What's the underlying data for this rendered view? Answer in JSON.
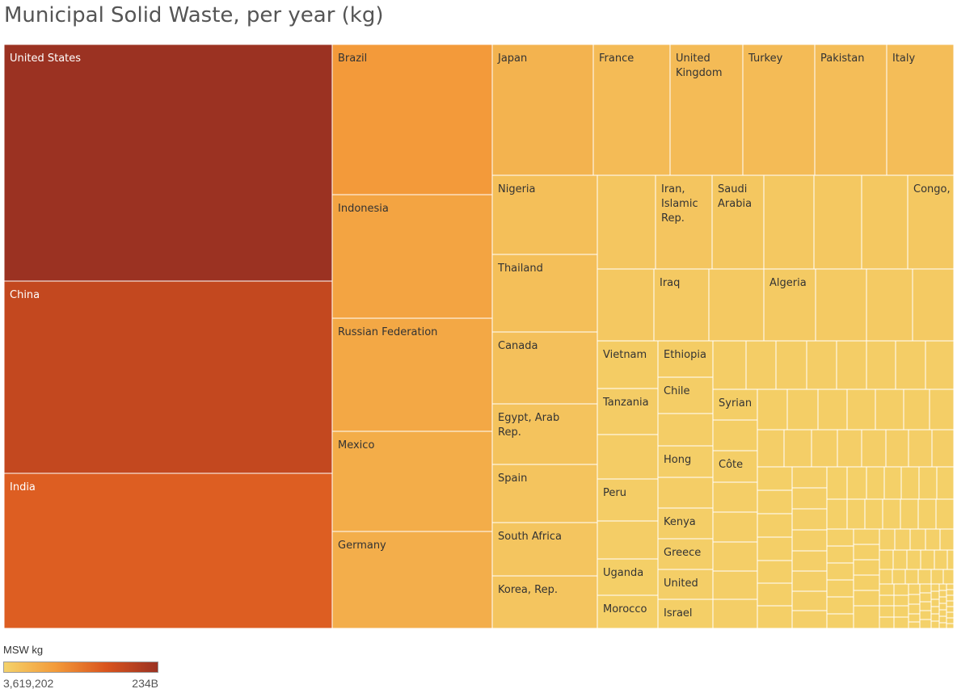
{
  "chart_data": {
    "type": "treemap",
    "title": "Municipal Solid Waste, per year (kg)",
    "color_legend": {
      "title": "MSW kg",
      "min_label": "3,619,202",
      "max_label": "234B",
      "gradient": [
        "#f4d26a",
        "#f39b3a",
        "#d9541e",
        "#9b3222"
      ]
    },
    "unit": "kg",
    "value_range": [
      3619202,
      234000000000
    ],
    "items": [
      {
        "label": "United States",
        "value": 234000000000
      },
      {
        "label": "China",
        "value": 184000000000
      },
      {
        "label": "India",
        "value": 145000000000
      },
      {
        "label": "Brazil",
        "value": 79000000000
      },
      {
        "label": "Indonesia",
        "value": 65000000000
      },
      {
        "label": "Russian Federation",
        "value": 60000000000
      },
      {
        "label": "Mexico",
        "value": 53000000000
      },
      {
        "label": "Germany",
        "value": 51000000000
      },
      {
        "label": "Japan",
        "value": 44000000000
      },
      {
        "label": "France",
        "value": 33000000000
      },
      {
        "label": "United Kingdom",
        "value": 32000000000
      },
      {
        "label": "Turkey",
        "value": 32000000000
      },
      {
        "label": "Pakistan",
        "value": 30000000000
      },
      {
        "label": "Italy",
        "value": 30000000000
      },
      {
        "label": "Nigeria",
        "value": 27000000000
      },
      {
        "label": "Thailand",
        "value": 27000000000
      },
      {
        "label": "Canada",
        "value": 25000000000
      },
      {
        "label": "Egypt, Arab Rep.",
        "value": 21000000000
      },
      {
        "label": "Spain",
        "value": 20000000000
      },
      {
        "label": "South Africa",
        "value": 18000000000
      },
      {
        "label": "Korea, Rep.",
        "value": 18000000000
      },
      {
        "label": "Iran, Islamic Rep.",
        "value": 18000000000
      },
      {
        "label": "Saudi Arabia",
        "value": 16000000000
      },
      {
        "label": "Congo,",
        "value": 14000000000
      },
      {
        "label": "Iraq",
        "value": 13000000000
      },
      {
        "label": "Algeria",
        "value": 12000000000
      },
      {
        "label": "Vietnam",
        "value": 9000000000
      },
      {
        "label": "Ethiopia",
        "value": 9000000000
      },
      {
        "label": "Tanzania",
        "value": 8000000000
      },
      {
        "label": "Chile",
        "value": 7000000000
      },
      {
        "label": "Syrian",
        "value": 6000000000
      },
      {
        "label": "Hong",
        "value": 5500000000
      },
      {
        "label": "Côte",
        "value": 5500000000
      },
      {
        "label": "Peru",
        "value": 7000000000
      },
      {
        "label": "Kenya",
        "value": 5000000000
      },
      {
        "label": "Greece",
        "value": 5000000000
      },
      {
        "label": "Uganda",
        "value": 4500000000
      },
      {
        "label": "United",
        "value": 5000000000
      },
      {
        "label": "Morocco",
        "value": 4500000000
      },
      {
        "label": "Israel",
        "value": 4500000000
      }
    ]
  }
}
